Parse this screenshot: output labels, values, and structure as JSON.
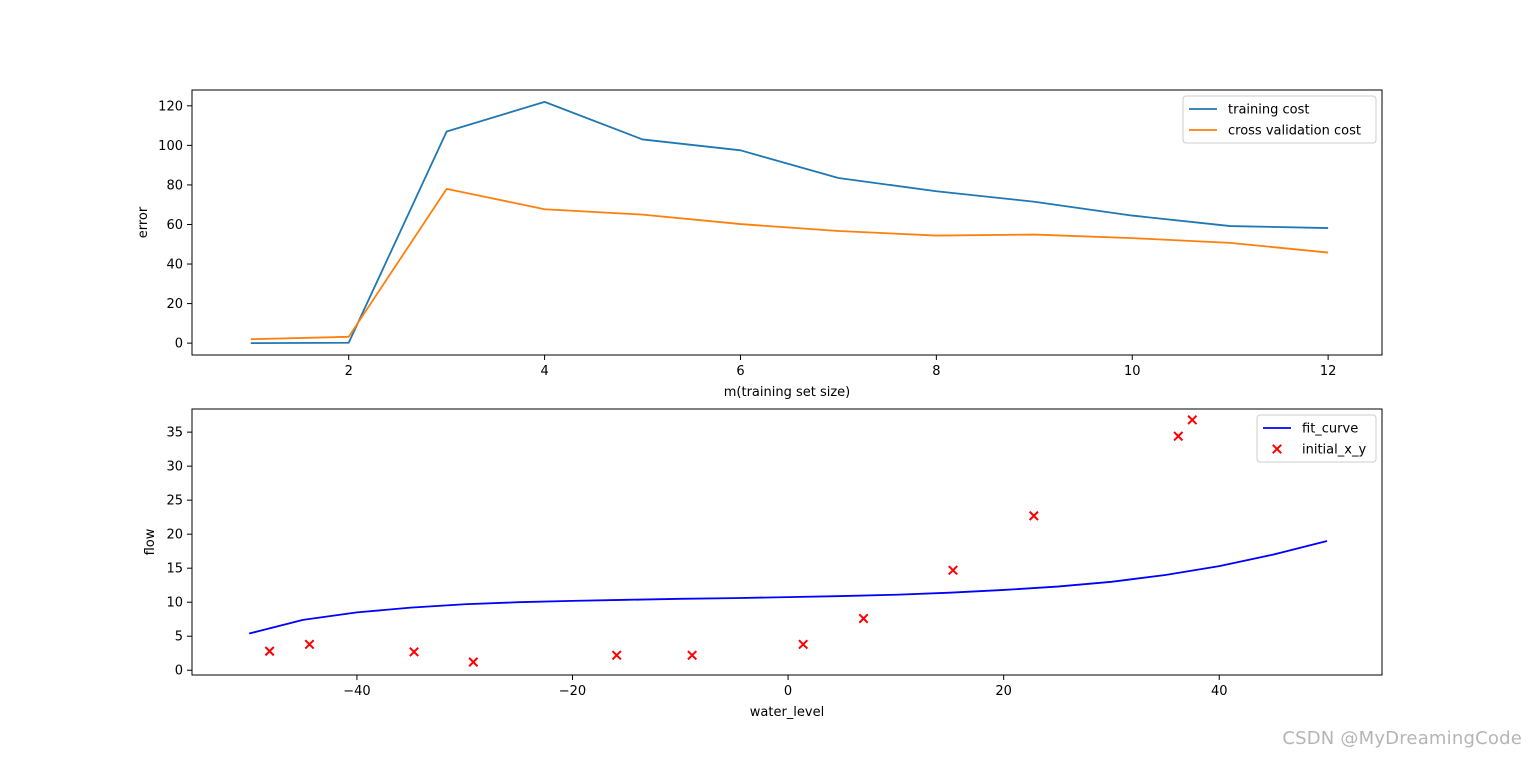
{
  "watermark": "CSDN @MyDreamingCode",
  "chart_data": [
    {
      "type": "line",
      "xlabel": "m(training set size)",
      "ylabel": "error",
      "xlim": [
        0.4,
        12.55
      ],
      "ylim": [
        -6,
        128
      ],
      "xticks": [
        2,
        4,
        6,
        8,
        10,
        12
      ],
      "yticks": [
        0,
        20,
        40,
        60,
        80,
        100,
        120
      ],
      "grid": false,
      "legend_position": "top-right",
      "x": [
        1,
        2,
        3,
        4,
        5,
        6,
        7,
        8,
        9,
        10,
        11,
        12
      ],
      "series": [
        {
          "name": "training cost",
          "color": "#1f77b4",
          "style": "line",
          "values": [
            0.0,
            0.2,
            107,
            122,
            103,
            97.5,
            83.5,
            76.8,
            71.5,
            64.5,
            59.2,
            58.2
          ]
        },
        {
          "name": "cross validation cost",
          "color": "#ff7f0e",
          "style": "line",
          "values": [
            2.0,
            3.2,
            78,
            67.7,
            65,
            60.2,
            56.7,
            54.4,
            54.9,
            53.1,
            50.7,
            45.8
          ]
        }
      ]
    },
    {
      "type": "scatter",
      "xlabel": "water_level",
      "ylabel": "flow",
      "xlim": [
        -55.3,
        55.1
      ],
      "ylim": [
        -0.7,
        38.4
      ],
      "xticks": [
        -40,
        -20,
        0,
        20,
        40
      ],
      "yticks": [
        0,
        5,
        10,
        15,
        20,
        25,
        30,
        35
      ],
      "grid": false,
      "legend_position": "top-right",
      "series": [
        {
          "name": "fit_curve",
          "color": "#0000ff",
          "style": "line",
          "x": [
            -50,
            -45,
            -40,
            -35,
            -30,
            -25,
            -20,
            -15,
            -10,
            -5,
            0,
            5,
            10,
            15,
            20,
            25,
            30,
            35,
            40,
            45,
            50
          ],
          "y": [
            5.4,
            7.4,
            8.5,
            9.2,
            9.7,
            10.0,
            10.2,
            10.35,
            10.5,
            10.6,
            10.75,
            10.9,
            11.1,
            11.4,
            11.8,
            12.3,
            13.0,
            14.0,
            15.3,
            17.0,
            19.0
          ]
        },
        {
          "name": "initial_x_y",
          "color": "#ff0000",
          "style": "x-marker",
          "x": [
            -48.1,
            -44.4,
            -34.7,
            -29.2,
            -15.9,
            -8.9,
            1.4,
            7.0,
            15.3,
            22.8,
            36.2,
            37.5
          ],
          "y": [
            2.8,
            3.8,
            2.7,
            1.2,
            2.2,
            2.2,
            3.8,
            7.6,
            14.7,
            22.7,
            34.4,
            36.8
          ]
        }
      ]
    }
  ]
}
